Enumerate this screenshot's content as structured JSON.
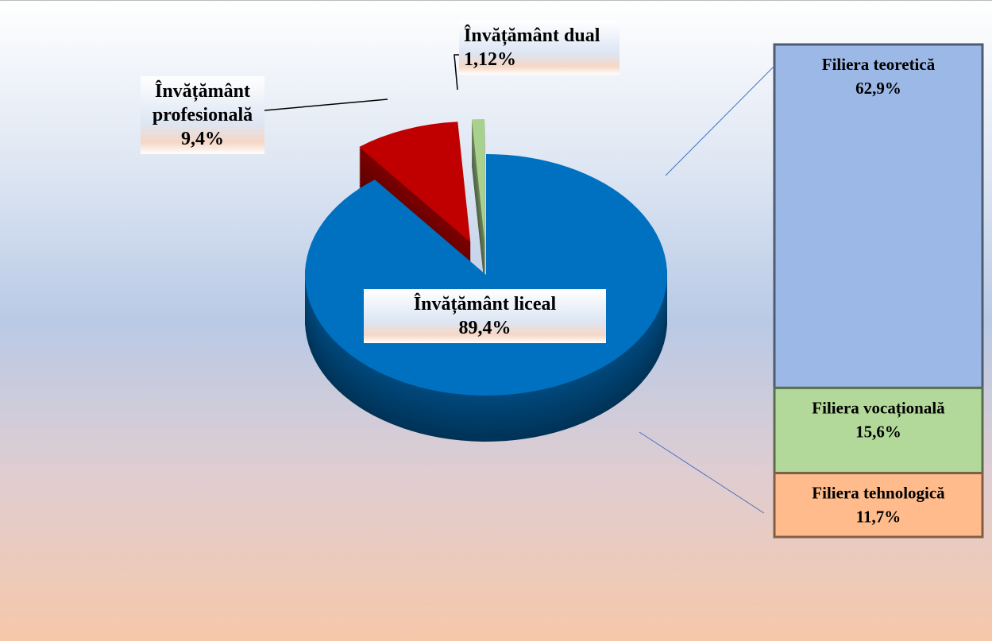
{
  "chart_data": {
    "type": "pie",
    "categories": [
      "Învățământ liceal",
      "Învățământ profesională",
      "Învățământ dual"
    ],
    "values": [
      89.4,
      9.4,
      1.12
    ],
    "value_labels": [
      "89,4%",
      "9,4%",
      "1,12%"
    ],
    "colors": [
      "#0070c0",
      "#c00000",
      "#a9d18e"
    ],
    "breakdown": {
      "type": "bar",
      "categories": [
        "Filiera teoretică",
        "Filiera vocațională",
        "Filiera tehnologică"
      ],
      "values": [
        62.9,
        15.6,
        11.7
      ],
      "value_labels": [
        "62,9%",
        "15,6%",
        "11,7%"
      ],
      "colors": [
        "#9cb8e6",
        "#b3d99a",
        "#ffbb8c"
      ]
    }
  }
}
